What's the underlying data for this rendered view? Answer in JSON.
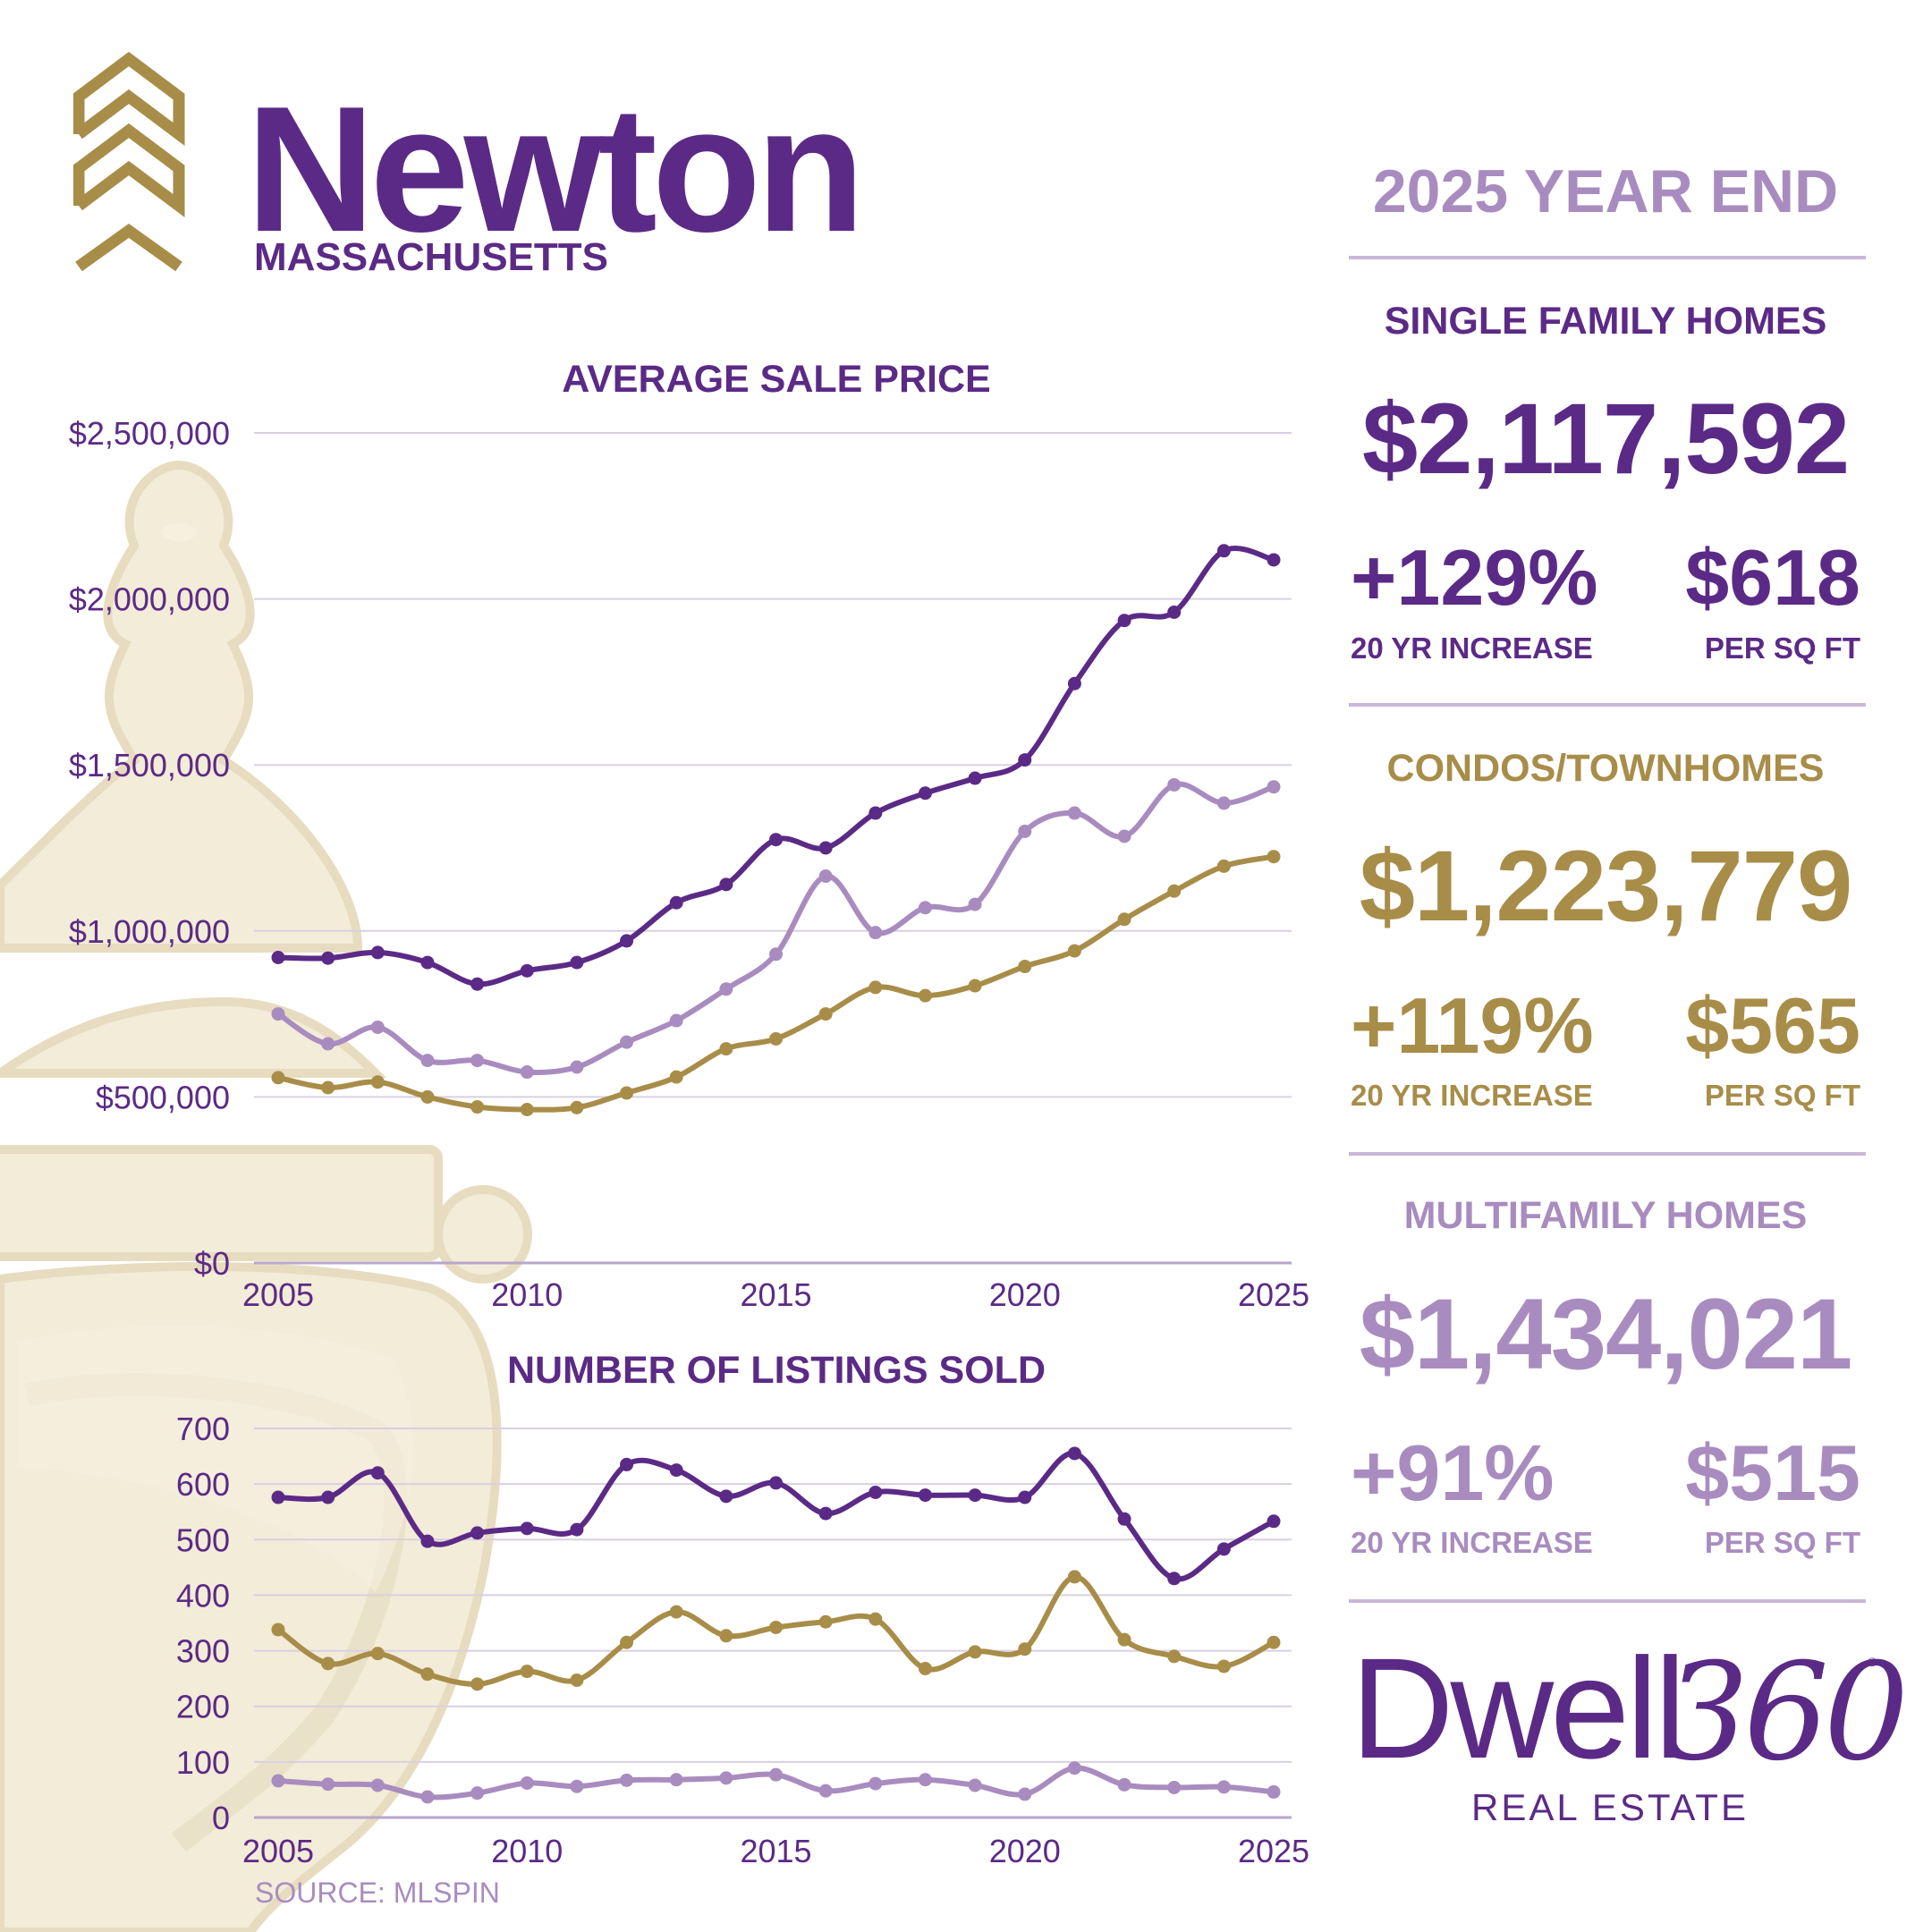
{
  "header": {
    "city": "Newton",
    "state": "MASSACHUSETTS"
  },
  "chart_titles": {
    "price": "AVERAGE SALE PRICE",
    "listings": "NUMBER OF LISTINGS SOLD"
  },
  "chart_data": [
    {
      "type": "line",
      "title": "AVERAGE SALE PRICE",
      "xlabel": "",
      "ylabel": "",
      "x": [
        2005,
        2006,
        2007,
        2008,
        2009,
        2010,
        2011,
        2012,
        2013,
        2014,
        2015,
        2016,
        2017,
        2018,
        2019,
        2020,
        2021,
        2022,
        2023,
        2024,
        2025
      ],
      "xticks": [
        "2005",
        "2010",
        "2015",
        "2020",
        "2025"
      ],
      "yticks": [
        "$0",
        "$500,000",
        "$1,000,000",
        "$1,500,000",
        "$2,000,000",
        "$2,500,000"
      ],
      "ylim": [
        0,
        2500000
      ],
      "grid": true,
      "series": [
        {
          "key": "single_family",
          "color": "#5b2a86",
          "values": [
            920000,
            918000,
            935000,
            905000,
            840000,
            880000,
            905000,
            970000,
            1085000,
            1140000,
            1275000,
            1250000,
            1355000,
            1415000,
            1460000,
            1515000,
            1745000,
            1935000,
            1960000,
            2145000,
            2117592
          ]
        },
        {
          "key": "multifamily",
          "color": "#a98cbf",
          "values": [
            750000,
            660000,
            710000,
            610000,
            610000,
            575000,
            590000,
            665000,
            730000,
            825000,
            930000,
            1165000,
            995000,
            1070000,
            1080000,
            1300000,
            1355000,
            1285000,
            1440000,
            1385000,
            1434021
          ]
        },
        {
          "key": "condo",
          "color": "#a88d49",
          "values": [
            558000,
            528000,
            545000,
            500000,
            470000,
            462000,
            468000,
            512000,
            560000,
            645000,
            675000,
            750000,
            830000,
            805000,
            835000,
            893000,
            940000,
            1035000,
            1120000,
            1195000,
            1223779
          ]
        }
      ]
    },
    {
      "type": "line",
      "title": "NUMBER OF LISTINGS SOLD",
      "xlabel": "",
      "ylabel": "",
      "x": [
        2005,
        2006,
        2007,
        2008,
        2009,
        2010,
        2011,
        2012,
        2013,
        2014,
        2015,
        2016,
        2017,
        2018,
        2019,
        2020,
        2021,
        2022,
        2023,
        2024,
        2025
      ],
      "xticks": [
        "2005",
        "2010",
        "2015",
        "2020",
        "2025"
      ],
      "yticks": [
        "0",
        "100",
        "200",
        "300",
        "400",
        "500",
        "600",
        "700"
      ],
      "ylim": [
        0,
        700
      ],
      "grid": true,
      "series": [
        {
          "key": "single_family",
          "color": "#5b2a86",
          "values": [
            576,
            576,
            620,
            497,
            512,
            520,
            518,
            635,
            625,
            578,
            602,
            547,
            585,
            580,
            580,
            576,
            655,
            537,
            430,
            483,
            533
          ]
        },
        {
          "key": "condo",
          "color": "#a88d49",
          "values": [
            338,
            277,
            295,
            258,
            240,
            263,
            247,
            315,
            370,
            327,
            342,
            352,
            357,
            268,
            298,
            303,
            433,
            320,
            290,
            272,
            315
          ]
        },
        {
          "key": "multifamily",
          "color": "#a98cbf",
          "values": [
            66,
            60,
            58,
            37,
            44,
            62,
            56,
            67,
            68,
            71,
            77,
            48,
            61,
            68,
            58,
            42,
            89,
            59,
            54,
            55,
            46
          ]
        }
      ]
    }
  ],
  "summary": {
    "title": "2025 YEAR END",
    "sections": [
      {
        "title": "SINGLE FAMILY HOMES",
        "price": "$2,117,592",
        "increase": "+129%",
        "increase_label": "20 YR INCREASE",
        "ppsf": "$618",
        "ppsf_label": "PER SQ FT",
        "color": "#5b2a86"
      },
      {
        "title": "CONDOS/TOWNHOMES",
        "price": "$1,223,779",
        "increase": "+119%",
        "increase_label": "20 YR INCREASE",
        "ppsf": "$565",
        "ppsf_label": "PER SQ FT",
        "color": "#a88d49"
      },
      {
        "title": "MULTIFAMILY HOMES",
        "price": "$1,434,021",
        "increase": "+91%",
        "increase_label": "20 YR INCREASE",
        "ppsf": "$515",
        "ppsf_label": "PER SQ FT",
        "color": "#a98cbf"
      }
    ]
  },
  "brand": {
    "word": "Dwell",
    "number": "360",
    "registered": "®",
    "tagline": "REAL ESTATE"
  },
  "source": "SOURCE: MLSPIN",
  "colors": {
    "purple": "#5b2a86",
    "gold": "#a88d49",
    "lilac": "#a98cbf",
    "grid": "#d8d0e2",
    "knocker": "#f3ecd8"
  }
}
